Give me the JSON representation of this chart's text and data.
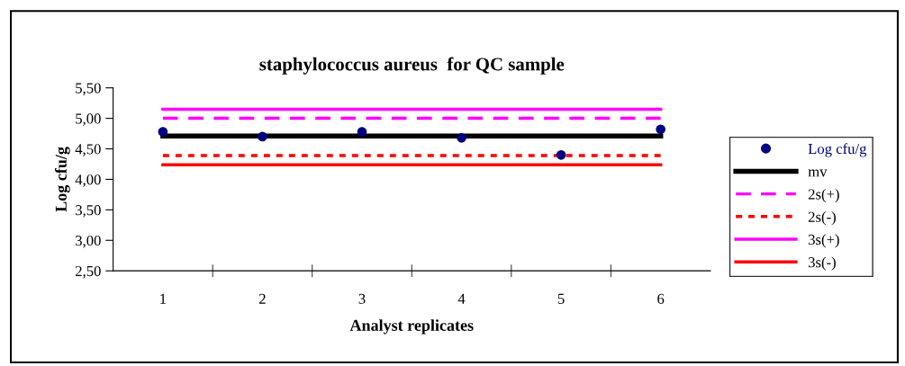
{
  "chart_data": {
    "type": "line",
    "title": "staphylococcus aureus  for QC sample",
    "xlabel": "Analyst replicates",
    "ylabel": "Log cfu/g",
    "categories": [
      "1",
      "2",
      "3",
      "4",
      "5",
      "6"
    ],
    "series": [
      {
        "name": "Log cfu/g",
        "type": "scatter",
        "marker": "circle",
        "color": "#000080",
        "values": [
          4.78,
          4.7,
          4.78,
          4.68,
          4.4,
          4.82
        ]
      },
      {
        "name": "mv",
        "line_style": "solid",
        "color": "#000000",
        "values": [
          4.71,
          4.71,
          4.71,
          4.71,
          4.71,
          4.71
        ]
      },
      {
        "name": "2s(+)",
        "line_style": "dashed",
        "color": "#ff00ff",
        "values": [
          5.0,
          5.0,
          5.0,
          5.0,
          5.0,
          5.0
        ]
      },
      {
        "name": "2s(-)",
        "line_style": "dotted",
        "color": "#ff0000",
        "values": [
          4.39,
          4.39,
          4.39,
          4.39,
          4.39,
          4.39
        ]
      },
      {
        "name": "3s(+)",
        "line_style": "solid",
        "color": "#ff00ff",
        "values": [
          5.15,
          5.15,
          5.15,
          5.15,
          5.15,
          5.15
        ]
      },
      {
        "name": "3s(-)",
        "line_style": "solid",
        "color": "#ff0000",
        "values": [
          4.24,
          4.24,
          4.24,
          4.24,
          4.24,
          4.24
        ]
      }
    ],
    "ylim": [
      2.5,
      5.5
    ],
    "yticks": [
      {
        "value": 2.5,
        "label": "2,50"
      },
      {
        "value": 3.0,
        "label": "3,00"
      },
      {
        "value": 3.5,
        "label": "3,50"
      },
      {
        "value": 4.0,
        "label": "4,00"
      },
      {
        "value": 4.5,
        "label": "4,50"
      },
      {
        "value": 5.0,
        "label": "5,00"
      },
      {
        "value": 5.5,
        "label": "5,50"
      }
    ],
    "grid": false,
    "legend": "right"
  }
}
